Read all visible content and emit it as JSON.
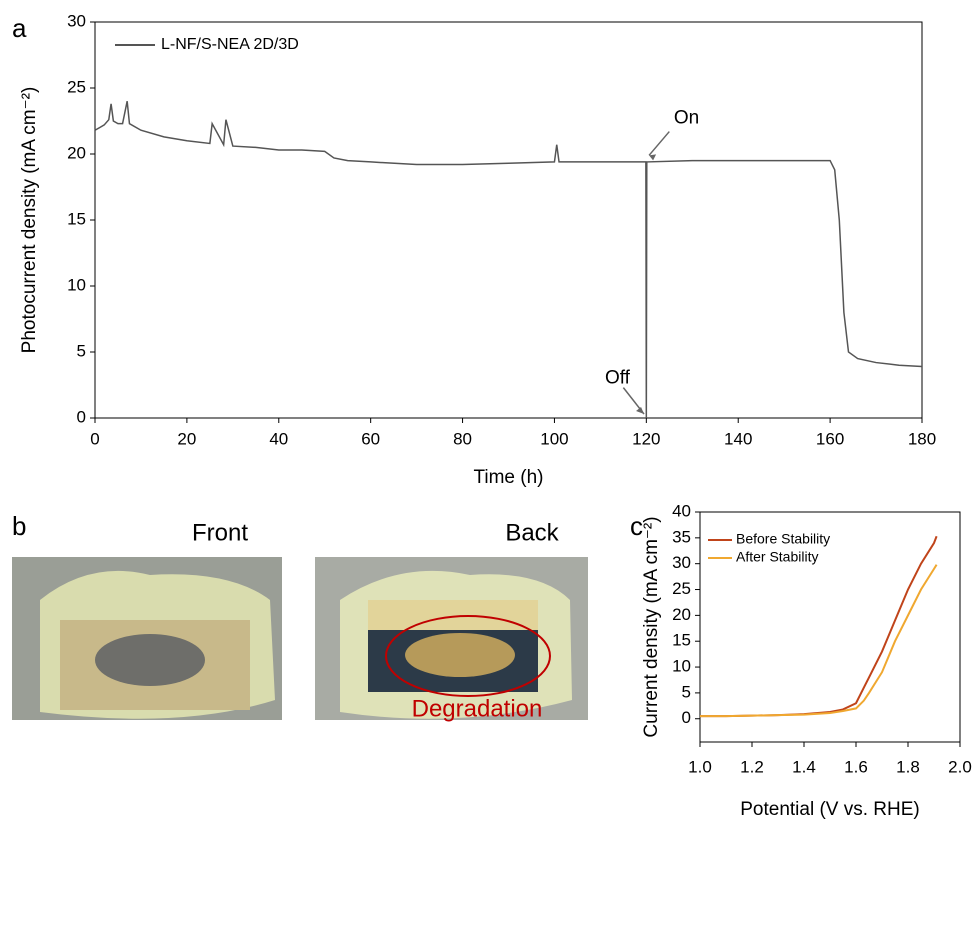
{
  "chart_data": [
    {
      "type": "line",
      "label": "a",
      "xlabel": "Time (h)",
      "ylabel": "Photocurrent density (mA cm⁻²)",
      "x": [
        0,
        1,
        2,
        3,
        3.5,
        4,
        5,
        6,
        7,
        7.5,
        10,
        15,
        20,
        25,
        25.5,
        28,
        28.5,
        30,
        35,
        40,
        45,
        50,
        52,
        55,
        60,
        70,
        80,
        90,
        100,
        100.5,
        101,
        110,
        119.9,
        120,
        120.1,
        130,
        140,
        150,
        160,
        161,
        162,
        163,
        164,
        166,
        170,
        175,
        180
      ],
      "series": [
        {
          "name": "L-NF/S-NEA 2D/3D",
          "color": "#555555",
          "values": [
            21.8,
            22.0,
            22.2,
            22.6,
            23.8,
            22.5,
            22.3,
            22.3,
            24.0,
            22.3,
            21.8,
            21.3,
            21.0,
            20.8,
            22.3,
            20.7,
            22.6,
            20.6,
            20.5,
            20.3,
            20.3,
            20.2,
            19.7,
            19.5,
            19.4,
            19.2,
            19.2,
            19.3,
            19.4,
            20.7,
            19.4,
            19.4,
            19.4,
            0,
            19.4,
            19.5,
            19.5,
            19.5,
            19.5,
            18.8,
            15,
            8,
            5,
            4.5,
            4.2,
            4.0,
            3.9
          ]
        }
      ],
      "annotations": [
        "On",
        "Off"
      ],
      "xlim": [
        0,
        180
      ],
      "xticks": [
        0,
        20,
        40,
        60,
        80,
        100,
        120,
        140,
        160,
        180
      ],
      "ylim": [
        0,
        30
      ],
      "yticks": [
        0,
        5,
        10,
        15,
        20,
        25,
        30
      ],
      "grid": false,
      "legend": "upper left"
    },
    {
      "type": "line",
      "label": "c",
      "xlabel": "Potential (V vs. RHE)",
      "ylabel": "Current density (mA cm⁻²)",
      "x": [
        1.0,
        1.1,
        1.2,
        1.3,
        1.4,
        1.5,
        1.55,
        1.6,
        1.63,
        1.65,
        1.7,
        1.75,
        1.8,
        1.85,
        1.9,
        1.91
      ],
      "series": [
        {
          "name": "Before Stability",
          "color": "#c0441a",
          "values": [
            0.5,
            0.5,
            0.6,
            0.7,
            0.9,
            1.3,
            1.8,
            3,
            6,
            8,
            13,
            19,
            25,
            30,
            34,
            35.3
          ]
        },
        {
          "name": "After Stability",
          "color": "#f0a830",
          "values": [
            0.5,
            0.5,
            0.6,
            0.7,
            0.8,
            1.1,
            1.5,
            2.0,
            3.5,
            5,
            9,
            15,
            20,
            25,
            29,
            29.8
          ]
        }
      ],
      "xlim": [
        1.0,
        2.0
      ],
      "xticks": [
        {
          "value": 1.0,
          "label": "1.0"
        },
        1.2,
        1.4,
        1.6,
        1.8,
        {
          "value": 2.0,
          "label": "2.0"
        }
      ],
      "ylim": [
        -4.5,
        40
      ],
      "yticks": [
        0,
        5,
        10,
        15,
        20,
        25,
        30,
        35,
        40
      ],
      "grid": false,
      "legend": "upper left"
    }
  ],
  "photos": {
    "label": "b",
    "front": "Front",
    "back": "Back",
    "annotation": "Degradation"
  }
}
